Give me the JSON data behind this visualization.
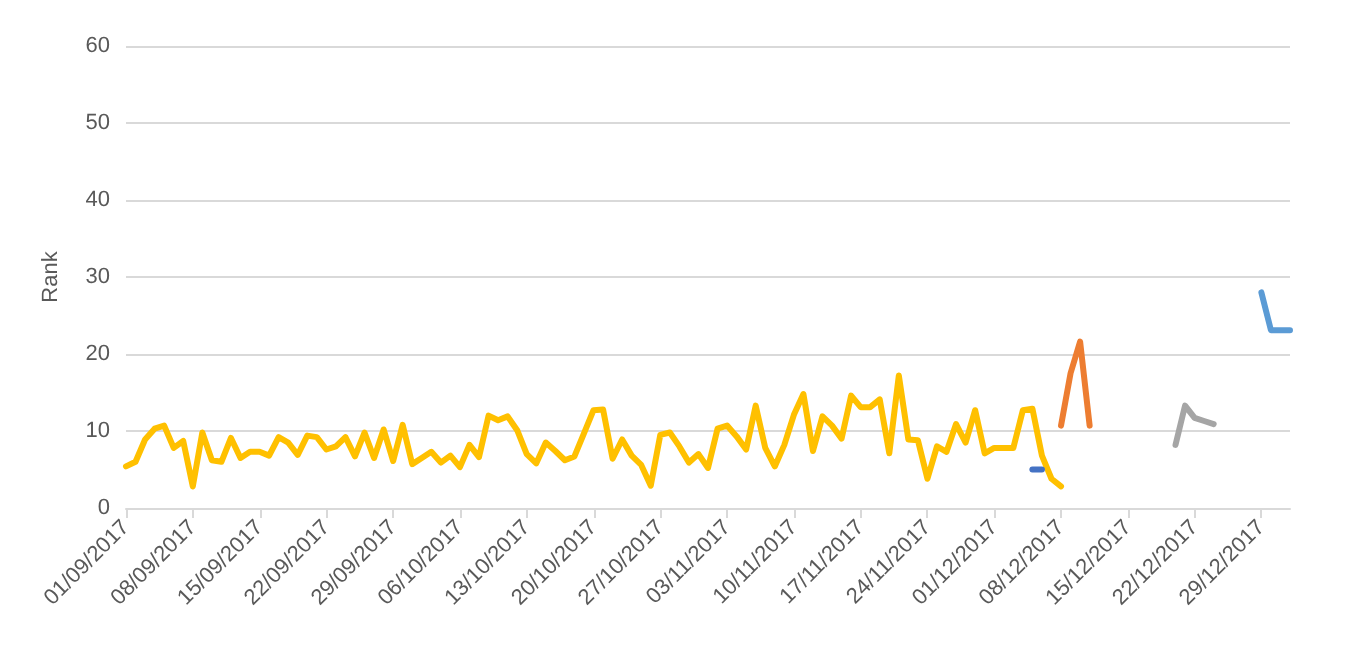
{
  "chart_data": {
    "type": "line",
    "ylabel": "Rank",
    "ylim": [
      0,
      60
    ],
    "yticks": [
      0,
      10,
      20,
      30,
      40,
      50,
      60
    ],
    "xlim": [
      "2017-09-01",
      "2018-01-01"
    ],
    "xticks": [
      {
        "value": "2017-09-01",
        "label": "01/09/2017"
      },
      {
        "value": "2017-09-08",
        "label": "08/09/2017"
      },
      {
        "value": "2017-09-15",
        "label": "15/09/2017"
      },
      {
        "value": "2017-09-22",
        "label": "22/09/2017"
      },
      {
        "value": "2017-09-29",
        "label": "29/09/2017"
      },
      {
        "value": "2017-10-06",
        "label": "06/10/2017"
      },
      {
        "value": "2017-10-13",
        "label": "13/10/2017"
      },
      {
        "value": "2017-10-20",
        "label": "20/10/2017"
      },
      {
        "value": "2017-10-27",
        "label": "27/10/2017"
      },
      {
        "value": "2017-11-03",
        "label": "03/11/2017"
      },
      {
        "value": "2017-11-10",
        "label": "10/11/2017"
      },
      {
        "value": "2017-11-17",
        "label": "17/11/2017"
      },
      {
        "value": "2017-11-24",
        "label": "24/11/2017"
      },
      {
        "value": "2017-12-01",
        "label": "01/12/2017"
      },
      {
        "value": "2017-12-08",
        "label": "08/12/2017"
      },
      {
        "value": "2017-12-15",
        "label": "15/12/2017"
      },
      {
        "value": "2017-12-22",
        "label": "22/12/2017"
      },
      {
        "value": "2017-12-29",
        "label": "29/12/2017"
      }
    ],
    "grid": "y",
    "marker": "none",
    "line_style": "solid",
    "x": [
      "2017-09-01",
      "2017-09-02",
      "2017-09-03",
      "2017-09-04",
      "2017-09-05",
      "2017-09-06",
      "2017-09-07",
      "2017-09-08",
      "2017-09-09",
      "2017-09-10",
      "2017-09-11",
      "2017-09-12",
      "2017-09-13",
      "2017-09-14",
      "2017-09-15",
      "2017-09-16",
      "2017-09-17",
      "2017-09-18",
      "2017-09-19",
      "2017-09-20",
      "2017-09-21",
      "2017-09-22",
      "2017-09-23",
      "2017-09-24",
      "2017-09-25",
      "2017-09-26",
      "2017-09-27",
      "2017-09-28",
      "2017-09-29",
      "2017-09-30",
      "2017-10-01",
      "2017-10-02",
      "2017-10-03",
      "2017-10-04",
      "2017-10-05",
      "2017-10-06",
      "2017-10-07",
      "2017-10-08",
      "2017-10-09",
      "2017-10-10",
      "2017-10-11",
      "2017-10-12",
      "2017-10-13",
      "2017-10-14",
      "2017-10-15",
      "2017-10-16",
      "2017-10-17",
      "2017-10-18",
      "2017-10-19",
      "2017-10-20",
      "2017-10-21",
      "2017-10-22",
      "2017-10-23",
      "2017-10-24",
      "2017-10-25",
      "2017-10-26",
      "2017-10-27",
      "2017-10-28",
      "2017-10-29",
      "2017-10-30",
      "2017-10-31",
      "2017-11-01",
      "2017-11-02",
      "2017-11-03",
      "2017-11-04",
      "2017-11-05",
      "2017-11-06",
      "2017-11-07",
      "2017-11-08",
      "2017-11-09",
      "2017-11-10",
      "2017-11-11",
      "2017-11-12",
      "2017-11-13",
      "2017-11-14",
      "2017-11-15",
      "2017-11-16",
      "2017-11-17",
      "2017-11-18",
      "2017-11-19",
      "2017-11-20",
      "2017-11-21",
      "2017-11-22",
      "2017-11-23",
      "2017-11-24",
      "2017-11-25",
      "2017-11-26",
      "2017-11-27",
      "2017-11-28",
      "2017-11-29",
      "2017-11-30",
      "2017-12-01",
      "2017-12-02",
      "2017-12-03",
      "2017-12-04",
      "2017-12-05",
      "2017-12-06",
      "2017-12-07",
      "2017-12-08"
    ],
    "series": [
      {
        "color": "#ffc000",
        "values": [
          5.4,
          6.0,
          8.9,
          10.3,
          10.7,
          7.8,
          8.7,
          2.8,
          9.8,
          6.2,
          6.0,
          9.1,
          6.5,
          7.3,
          7.3,
          6.8,
          9.2,
          8.5,
          6.9,
          9.4,
          9.2,
          7.6,
          8.0,
          9.2,
          6.7,
          9.8,
          6.5,
          10.2,
          6.1,
          10.8,
          5.7,
          6.5,
          7.3,
          5.9,
          6.8,
          5.3,
          8.2,
          6.6,
          12.0,
          11.4,
          11.9,
          10.1,
          7.0,
          5.8,
          8.5,
          7.4,
          6.2,
          6.7,
          9.7,
          12.7,
          12.8,
          6.4,
          8.9,
          6.8,
          5.6,
          2.9,
          9.5,
          9.8,
          8.0,
          5.9,
          7.0,
          5.2,
          10.3,
          10.7,
          9.3,
          7.6,
          13.3,
          7.8,
          5.4,
          8.2,
          12.1,
          14.8,
          7.4,
          11.9,
          10.7,
          9.0,
          14.6,
          13.1,
          13.1,
          14.1,
          7.1,
          17.2,
          8.9,
          8.8,
          3.8,
          8.0,
          7.3,
          10.9,
          8.5,
          12.7,
          7.1,
          7.8,
          7.8,
          7.8,
          12.7,
          12.9,
          6.8,
          3.8,
          2.8
        ]
      },
      {
        "color": "#4472c4",
        "x": [
          "2017-12-05",
          "2017-12-06"
        ],
        "values": [
          5,
          5
        ]
      },
      {
        "color": "#ed7d31",
        "x": [
          "2017-12-08",
          "2017-12-09",
          "2017-12-10",
          "2017-12-11"
        ],
        "values": [
          10.7,
          17.5,
          21.6,
          10.7
        ]
      },
      {
        "color": "#a5a5a5",
        "x": [
          "2017-12-20",
          "2017-12-21",
          "2017-12-22",
          "2017-12-23",
          "2017-12-24"
        ],
        "values": [
          8.2,
          13.3,
          11.7,
          11.3,
          10.9
        ]
      },
      {
        "color": "#5b9bd5",
        "x": [
          "2017-12-29",
          "2017-12-30",
          "2017-12-31",
          "2018-01-01"
        ],
        "values": [
          28.0,
          23.1,
          23.1,
          23.1
        ]
      }
    ]
  }
}
